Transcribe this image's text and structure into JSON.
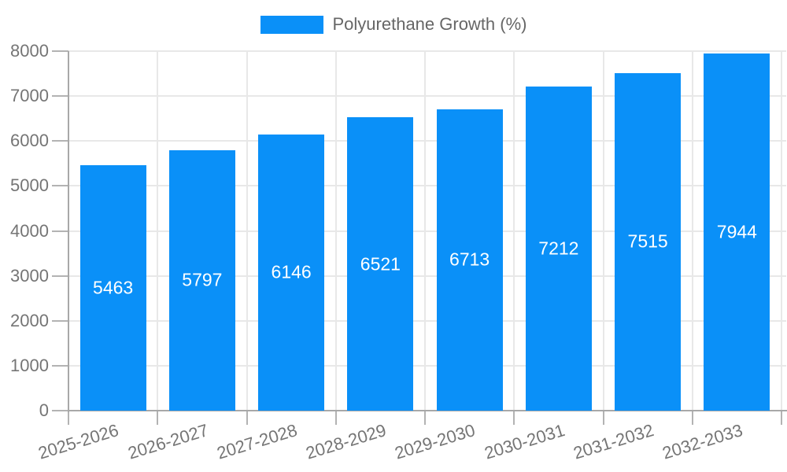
{
  "legend": {
    "series_label": "Polyurethane Growth (%)",
    "swatch_color": "#0a90f8"
  },
  "chart_data": {
    "type": "bar",
    "title": "",
    "xlabel": "",
    "ylabel": "",
    "categories": [
      "2025-2026",
      "2026-2027",
      "2027-2028",
      "2028-2029",
      "2029-2030",
      "2030-2031",
      "2031-2032",
      "2032-2033"
    ],
    "series": [
      {
        "name": "Polyurethane Growth (%)",
        "values": [
          5463,
          5797,
          6146,
          6521,
          6713,
          7212,
          7515,
          7944
        ]
      }
    ],
    "value_labels_inside_bars": true,
    "ylim": [
      0,
      8000
    ],
    "ytick_step": 1000,
    "yticks": [
      0,
      1000,
      2000,
      3000,
      4000,
      5000,
      6000,
      7000,
      8000
    ],
    "grid": true,
    "legend_position": "top",
    "colors": {
      "bar": "#0a90f8",
      "grid": "#e8e8e8",
      "axis": "#a8a8a8",
      "tick": "#b3b3b3",
      "tick_text": "#757575",
      "legend_text": "#666666",
      "value_label_text": "#ffffff",
      "background": "#ffffff"
    }
  }
}
